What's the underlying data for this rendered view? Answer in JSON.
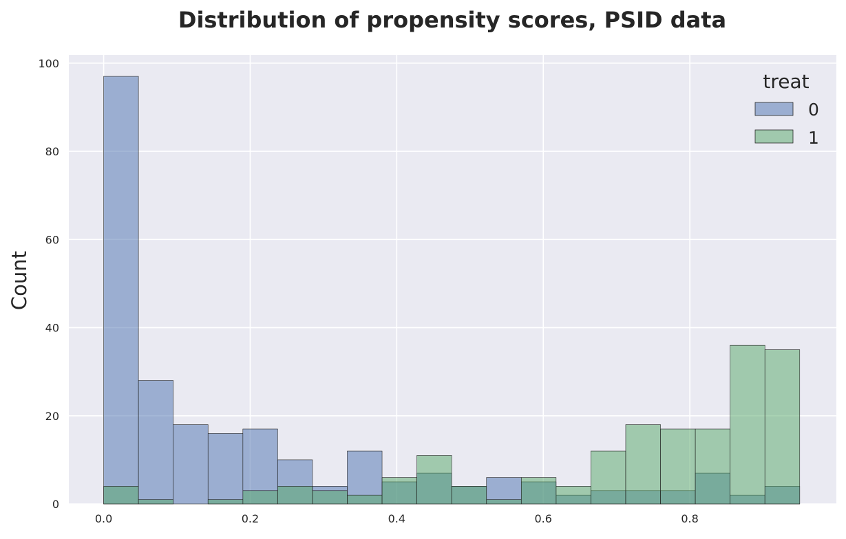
{
  "chart_data": {
    "type": "bar",
    "title": "Distribution of propensity scores, PSID data",
    "xlabel": "",
    "ylabel": "Count",
    "xlim": [
      -0.0475,
      1.0
    ],
    "ylim": [
      0,
      101.85
    ],
    "xticks": [
      "0.0",
      "0.2",
      "0.4",
      "0.6",
      "0.8"
    ],
    "xtick_values": [
      0.0,
      0.2,
      0.4,
      0.6,
      0.8
    ],
    "yticks": [
      "0",
      "20",
      "40",
      "60",
      "80",
      "100"
    ],
    "ytick_values": [
      0,
      20,
      40,
      60,
      80,
      100
    ],
    "bin_edges": [
      0.0,
      0.0475,
      0.095,
      0.1425,
      0.19,
      0.2375,
      0.285,
      0.3325,
      0.38,
      0.4275,
      0.475,
      0.5225,
      0.57,
      0.6175,
      0.665,
      0.7125,
      0.76,
      0.8075,
      0.855,
      0.9025,
      0.95
    ],
    "series": [
      {
        "name": "0",
        "color": "#4c72b0",
        "values": [
          97,
          28,
          18,
          16,
          17,
          10,
          4,
          12,
          5,
          7,
          4,
          6,
          5,
          2,
          3,
          3,
          3,
          7,
          2,
          4
        ]
      },
      {
        "name": "1",
        "color": "#55a868",
        "values": [
          4,
          1,
          0,
          1,
          3,
          4,
          3,
          2,
          6,
          11,
          4,
          1,
          6,
          4,
          12,
          18,
          17,
          17,
          36,
          35
        ]
      }
    ],
    "grid": true,
    "background": "#eaeaf2",
    "legend": {
      "title": "treat",
      "position": "top-right"
    }
  }
}
